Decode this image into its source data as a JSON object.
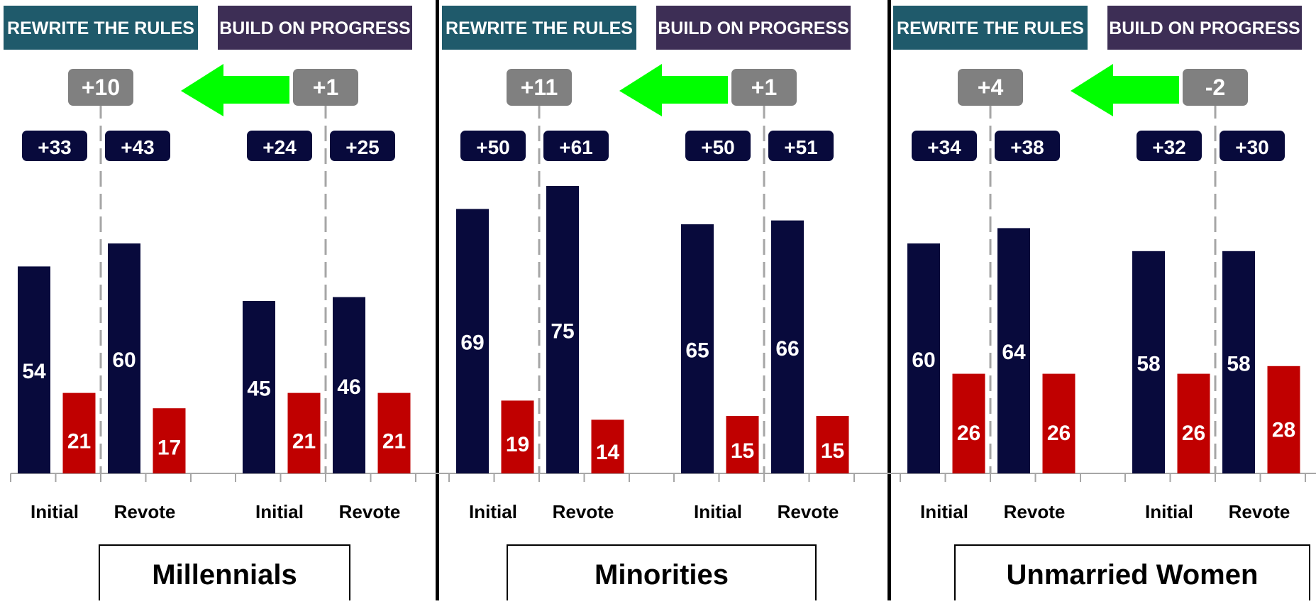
{
  "colors": {
    "rewrite_header": "#1f5a6b",
    "build_header": "#3d2e55",
    "dem_bar": "#080a3c",
    "rep_bar": "#c00000",
    "margin_badge": "#080a3c",
    "shift_badge": "#808080",
    "arrow": "#00ff00",
    "separator": "#000000",
    "dash_line": "#a6a6a6",
    "axis": "#a6a6a6"
  },
  "chart_data": [
    {
      "type": "bar",
      "title": "Millennials",
      "ylim": [
        0,
        75
      ],
      "groups": [
        {
          "header": "REWRITE THE RULES",
          "shift": "+10",
          "bars": [
            {
              "label": "Initial",
              "margin": "+33",
              "values": [
                54,
                21
              ]
            },
            {
              "label": "Revote",
              "margin": "+43",
              "values": [
                60,
                17
              ]
            }
          ]
        },
        {
          "header": "BUILD ON PROGRESS",
          "shift": "+1",
          "bars": [
            {
              "label": "Initial",
              "margin": "+24",
              "values": [
                45,
                21
              ]
            },
            {
              "label": "Revote",
              "margin": "+25",
              "values": [
                46,
                21
              ]
            }
          ]
        }
      ]
    },
    {
      "type": "bar",
      "title": "Minorities",
      "ylim": [
        0,
        75
      ],
      "groups": [
        {
          "header": "REWRITE THE RULES",
          "shift": "+11",
          "bars": [
            {
              "label": "Initial",
              "margin": "+50",
              "values": [
                69,
                19
              ]
            },
            {
              "label": "Revote",
              "margin": "+61",
              "values": [
                75,
                14
              ]
            }
          ]
        },
        {
          "header": "BUILD ON PROGRESS",
          "shift": "+1",
          "bars": [
            {
              "label": "Initial",
              "margin": "+50",
              "values": [
                65,
                15
              ]
            },
            {
              "label": "Revote",
              "margin": "+51",
              "values": [
                66,
                15
              ]
            }
          ]
        }
      ]
    },
    {
      "type": "bar",
      "title": "Unmarried Women",
      "ylim": [
        0,
        75
      ],
      "groups": [
        {
          "header": "REWRITE THE RULES",
          "shift": "+4",
          "bars": [
            {
              "label": "Initial",
              "margin": "+34",
              "values": [
                60,
                26
              ]
            },
            {
              "label": "Revote",
              "margin": "+38",
              "values": [
                64,
                26
              ]
            }
          ]
        },
        {
          "header": "BUILD ON PROGRESS",
          "shift": "-2",
          "bars": [
            {
              "label": "Initial",
              "margin": "+32",
              "values": [
                58,
                26
              ]
            },
            {
              "label": "Revote",
              "margin": "+30",
              "values": [
                58,
                28
              ]
            }
          ]
        }
      ]
    }
  ]
}
